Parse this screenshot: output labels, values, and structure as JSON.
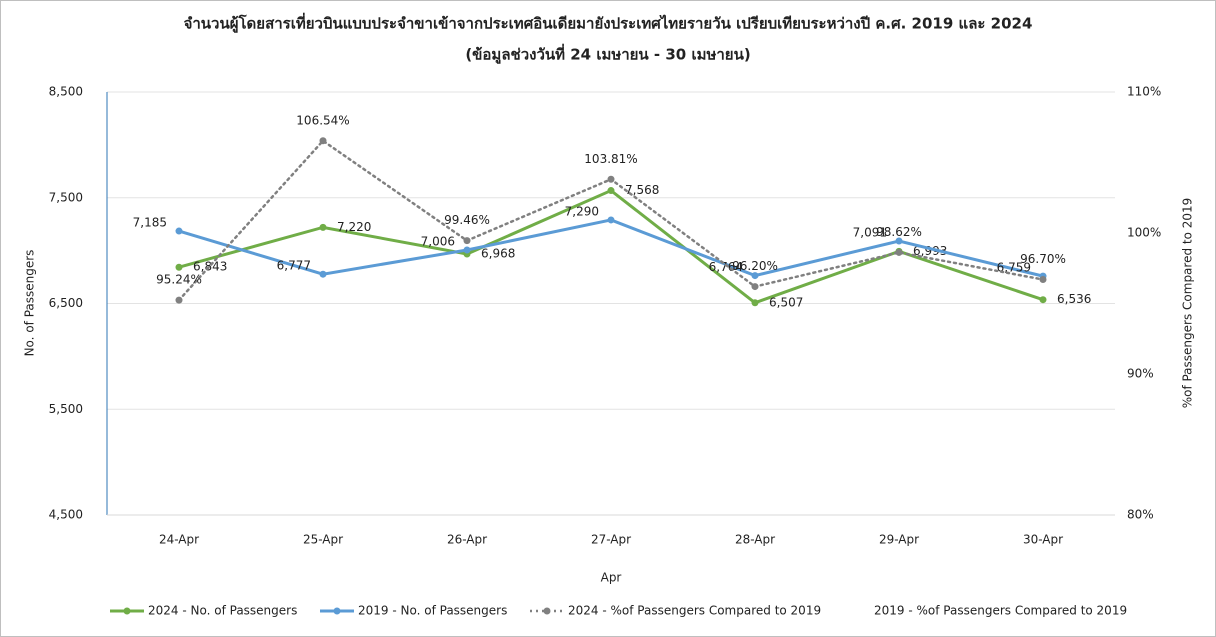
{
  "chart_data": {
    "type": "line",
    "title": "จำนวนผู้โดยสารเที่ยวบินแบบประจำขาเข้าจากประเทศอินเดียมายังประเทศไทยรายวัน เปรียบเทียบระหว่างปี ค.ศ. 2019 และ 2024",
    "subtitle": "(ข้อมูลช่วงวันที่ 24 เมษายน - 30 เมษายน)",
    "x_label": "Apr",
    "y_label": "No. of Passengers",
    "y2_label": "%of Passengers Compared to 2019",
    "categories": [
      "24-Apr",
      "25-Apr",
      "26-Apr",
      "27-Apr",
      "28-Apr",
      "29-Apr",
      "30-Apr"
    ],
    "ylim": [
      4500,
      8500
    ],
    "yticks": [
      {
        "value": 4500,
        "label": "4,500"
      },
      {
        "value": 5500,
        "label": "5,500"
      },
      {
        "value": 6500,
        "label": "6,500"
      },
      {
        "value": 7500,
        "label": "7,500"
      },
      {
        "value": 8500,
        "label": "8,500"
      }
    ],
    "y2lim": [
      80,
      110
    ],
    "y2ticks": [
      {
        "value": 80,
        "label": "80%"
      },
      {
        "value": 90,
        "label": "90%"
      },
      {
        "value": 100,
        "label": "100%"
      },
      {
        "value": 110,
        "label": "110%"
      }
    ],
    "grid": true,
    "legend": "bottom",
    "series": [
      {
        "name": "2024 - No. of Passengers",
        "color": "#70ad47",
        "values": [
          6843,
          7220,
          6968,
          7568,
          6507,
          6993,
          6536
        ],
        "value_labels": [
          "6,843",
          "7,220",
          "6,968",
          "7,568",
          "6,507",
          "6,993",
          "6,536"
        ]
      },
      {
        "name": "2019 - No. of Passengers",
        "color": "#5b9bd5",
        "values": [
          7185,
          6777,
          7006,
          7290,
          6764,
          7091,
          6759
        ],
        "value_labels": [
          "7,185",
          "6,777",
          "7,006",
          "7,290",
          "6,764",
          "7,091",
          "6,759"
        ]
      },
      {
        "name": "2024 - %of Passengers Compared to 2019",
        "color": "#808080",
        "dashed": true,
        "axis": "y2",
        "values": [
          95.24,
          106.54,
          99.46,
          103.81,
          96.2,
          98.62,
          96.7
        ],
        "value_labels": [
          "95.24%",
          "106.54%",
          "99.46%",
          "103.81%",
          "96.20%",
          "98.62%",
          "96.70%"
        ]
      },
      {
        "name": "2019 - %of Passengers Compared to 2019",
        "axis": "y2",
        "values": [
          null,
          null,
          null,
          null,
          null,
          null,
          null
        ]
      }
    ]
  }
}
